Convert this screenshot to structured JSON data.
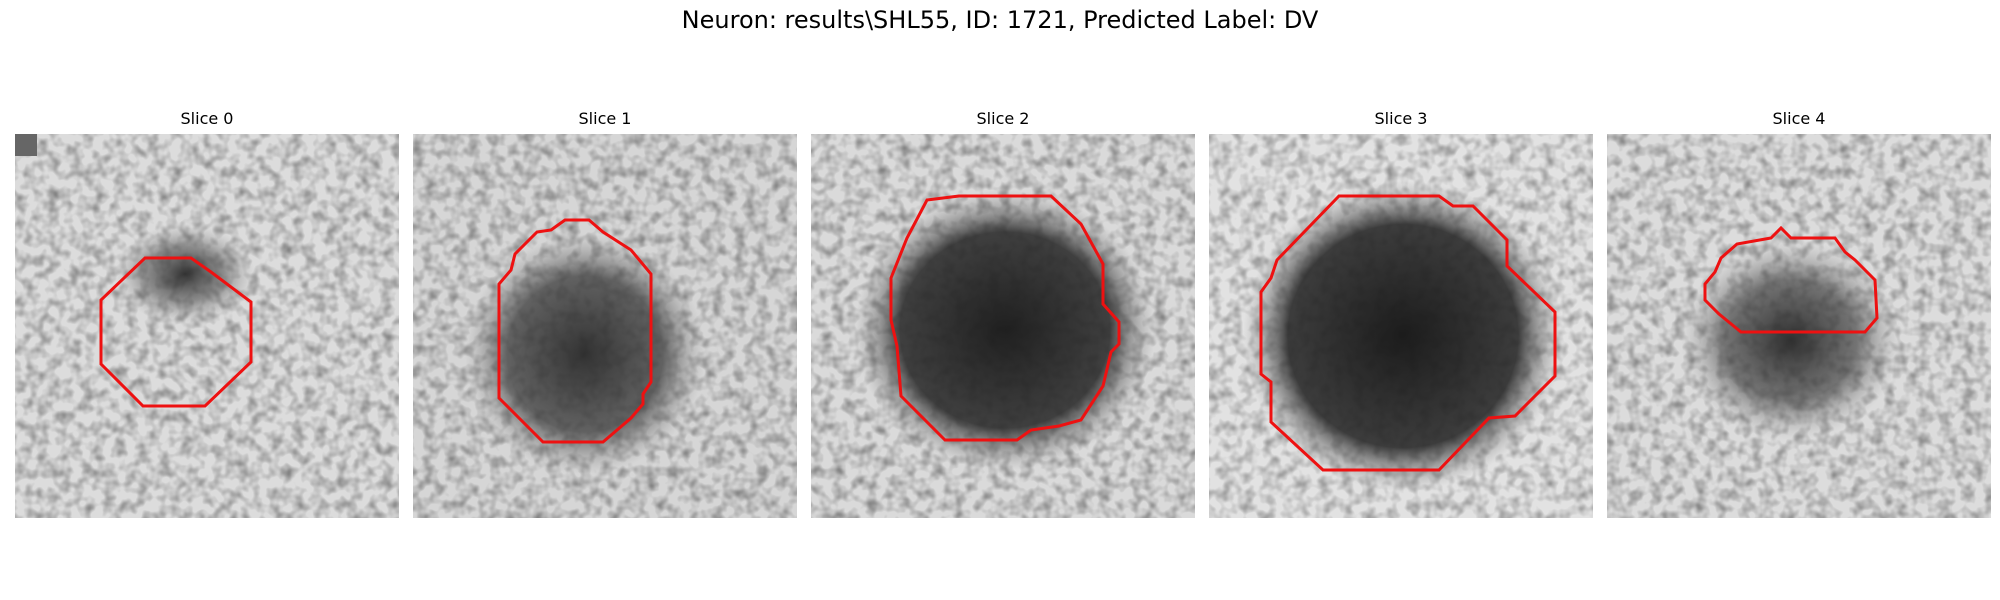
{
  "figure": {
    "title": "Neuron: results\\SHL55, ID: 1721, Predicted Label: DV"
  },
  "colors": {
    "contour": "#ee1111",
    "background": "#ffffff"
  },
  "panels": [
    {
      "title": "Slice 0"
    },
    {
      "title": "Slice 1"
    },
    {
      "title": "Slice 2"
    },
    {
      "title": "Slice 3"
    },
    {
      "title": "Slice 4"
    }
  ]
}
